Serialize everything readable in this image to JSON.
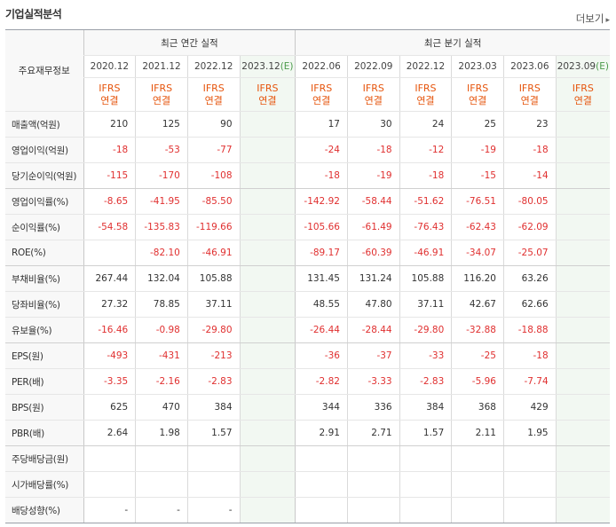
{
  "header": {
    "title": "기업실적분석",
    "more_label": "더보기"
  },
  "table": {
    "corner_label": "주요재무정보",
    "annual_label": "최근 연간 실적",
    "quarter_label": "최근 분기 실적",
    "annual_periods": [
      "2020.12",
      "2021.12",
      "2022.12",
      "2023.12"
    ],
    "annual_estimate_mark": "(E)",
    "quarter_periods": [
      "2022.06",
      "2022.09",
      "2022.12",
      "2023.03",
      "2023.06",
      "2023.09"
    ],
    "quarter_estimate_mark": "(E)",
    "ifrs_top": "IFRS",
    "ifrs_bottom": "연결",
    "rows": [
      {
        "label": "매출액(억원)",
        "values": [
          "210",
          "125",
          "90",
          "",
          "17",
          "30",
          "24",
          "25",
          "23",
          ""
        ]
      },
      {
        "label": "영업이익(억원)",
        "values": [
          "-18",
          "-53",
          "-77",
          "",
          "-24",
          "-18",
          "-12",
          "-19",
          "-18",
          ""
        ]
      },
      {
        "label": "당기순이익(억원)",
        "values": [
          "-115",
          "-170",
          "-108",
          "",
          "-18",
          "-19",
          "-18",
          "-15",
          "-14",
          ""
        ]
      },
      {
        "label": "영업이익률(%)",
        "values": [
          "-8.65",
          "-41.95",
          "-85.50",
          "",
          "-142.92",
          "-58.44",
          "-51.62",
          "-76.51",
          "-80.05",
          ""
        ]
      },
      {
        "label": "순이익률(%)",
        "values": [
          "-54.58",
          "-135.83",
          "-119.66",
          "",
          "-105.66",
          "-61.49",
          "-76.43",
          "-62.43",
          "-62.09",
          ""
        ]
      },
      {
        "label": "ROE(%)",
        "values": [
          "",
          "-82.10",
          "-46.91",
          "",
          "-89.17",
          "-60.39",
          "-46.91",
          "-34.07",
          "-25.07",
          ""
        ]
      },
      {
        "label": "부채비율(%)",
        "values": [
          "267.44",
          "132.04",
          "105.88",
          "",
          "131.45",
          "131.24",
          "105.88",
          "116.20",
          "63.26",
          ""
        ]
      },
      {
        "label": "당좌비율(%)",
        "values": [
          "27.32",
          "78.85",
          "37.11",
          "",
          "48.55",
          "47.80",
          "37.11",
          "42.67",
          "62.66",
          ""
        ]
      },
      {
        "label": "유보율(%)",
        "values": [
          "-16.46",
          "-0.98",
          "-29.80",
          "",
          "-26.44",
          "-28.44",
          "-29.80",
          "-32.88",
          "-18.88",
          ""
        ]
      },
      {
        "label": "EPS(원)",
        "values": [
          "-493",
          "-431",
          "-213",
          "",
          "-36",
          "-37",
          "-33",
          "-25",
          "-18",
          ""
        ]
      },
      {
        "label": "PER(배)",
        "values": [
          "-3.35",
          "-2.16",
          "-2.83",
          "",
          "-2.82",
          "-3.33",
          "-2.83",
          "-5.96",
          "-7.74",
          ""
        ]
      },
      {
        "label": "BPS(원)",
        "values": [
          "625",
          "470",
          "384",
          "",
          "344",
          "336",
          "384",
          "368",
          "429",
          ""
        ]
      },
      {
        "label": "PBR(배)",
        "values": [
          "2.64",
          "1.98",
          "1.57",
          "",
          "2.91",
          "2.71",
          "1.57",
          "2.11",
          "1.95",
          ""
        ]
      },
      {
        "label": "주당배당금(원)",
        "values": [
          "",
          "",
          "",
          "",
          "",
          "",
          "",
          "",
          "",
          ""
        ]
      },
      {
        "label": "시가배당률(%)",
        "values": [
          "",
          "",
          "",
          "",
          "",
          "",
          "",
          "",
          "",
          ""
        ]
      },
      {
        "label": "배당성향(%)",
        "values": [
          "-",
          "-",
          "-",
          "",
          "",
          "",
          "",
          "",
          "",
          ""
        ]
      }
    ]
  },
  "colors": {
    "negative": "#e03030",
    "ifrs": "#e6550d",
    "estimate_bg": "#f2f8f2",
    "estimate_mark": "#4a9a4a"
  }
}
